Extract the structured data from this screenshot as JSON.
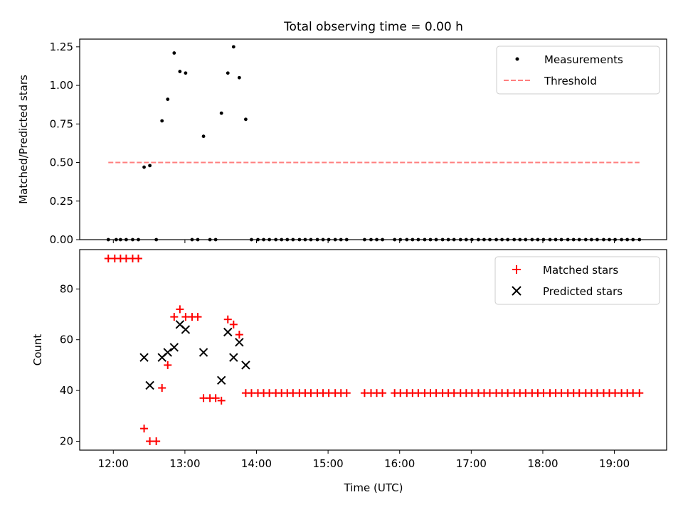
{
  "chart_data": [
    {
      "type": "scatter",
      "title": "Total observing time = 0.00 h",
      "ylabel": "Matched/Predicted stars",
      "xlim": [
        11.53,
        19.73
      ],
      "ylim": [
        0,
        1.3
      ],
      "yticks": [
        0,
        0.25,
        0.5,
        0.75,
        1.0,
        1.25
      ],
      "ytick_labels": [
        "0.00",
        "0.25",
        "0.50",
        "0.75",
        "1.00",
        "1.25"
      ],
      "legend_position": "top-right",
      "series": [
        {
          "name": "Measurements",
          "marker": "dot",
          "color": "#000000",
          "points": [
            [
              11.93,
              0
            ],
            [
              12.04,
              0
            ],
            [
              12.1,
              0
            ],
            [
              12.18,
              0
            ],
            [
              12.27,
              0
            ],
            [
              12.35,
              0
            ],
            [
              12.43,
              0.47
            ],
            [
              12.51,
              0.48
            ],
            [
              12.6,
              0
            ],
            [
              12.68,
              0.77
            ],
            [
              12.76,
              0.91
            ],
            [
              12.85,
              1.21
            ],
            [
              12.93,
              1.09
            ],
            [
              13.01,
              1.08
            ],
            [
              13.1,
              0
            ],
            [
              13.18,
              0
            ],
            [
              13.26,
              0.67
            ],
            [
              13.35,
              0
            ],
            [
              13.43,
              0
            ],
            [
              13.51,
              0.82
            ],
            [
              13.6,
              1.08
            ],
            [
              13.68,
              1.25
            ],
            [
              13.76,
              1.05
            ],
            [
              13.85,
              0.78
            ],
            [
              13.93,
              0
            ],
            [
              14.02,
              0
            ],
            [
              14.1,
              0
            ],
            [
              14.18,
              0
            ],
            [
              14.27,
              0
            ],
            [
              14.35,
              0
            ],
            [
              14.43,
              0
            ],
            [
              14.51,
              0
            ],
            [
              14.6,
              0
            ],
            [
              14.68,
              0
            ],
            [
              14.76,
              0
            ],
            [
              14.85,
              0
            ],
            [
              14.93,
              0
            ],
            [
              15.01,
              0
            ],
            [
              15.1,
              0
            ],
            [
              15.18,
              0
            ],
            [
              15.26,
              0
            ],
            [
              15.51,
              0
            ],
            [
              15.6,
              0
            ],
            [
              15.68,
              0
            ],
            [
              15.76,
              0
            ],
            [
              15.93,
              0
            ],
            [
              16.01,
              0
            ],
            [
              16.1,
              0
            ],
            [
              16.18,
              0
            ],
            [
              16.26,
              0
            ],
            [
              16.35,
              0
            ],
            [
              16.43,
              0
            ],
            [
              16.51,
              0
            ],
            [
              16.6,
              0
            ],
            [
              16.68,
              0
            ],
            [
              16.76,
              0
            ],
            [
              16.85,
              0
            ],
            [
              16.93,
              0
            ],
            [
              17.01,
              0
            ],
            [
              17.1,
              0
            ],
            [
              17.18,
              0
            ],
            [
              17.26,
              0
            ],
            [
              17.35,
              0
            ],
            [
              17.43,
              0
            ],
            [
              17.51,
              0
            ],
            [
              17.6,
              0
            ],
            [
              17.68,
              0
            ],
            [
              17.76,
              0
            ],
            [
              17.85,
              0
            ],
            [
              17.93,
              0
            ],
            [
              18.01,
              0
            ],
            [
              18.1,
              0
            ],
            [
              18.18,
              0
            ],
            [
              18.26,
              0
            ],
            [
              18.35,
              0
            ],
            [
              18.43,
              0
            ],
            [
              18.51,
              0
            ],
            [
              18.6,
              0
            ],
            [
              18.68,
              0
            ],
            [
              18.76,
              0
            ],
            [
              18.85,
              0
            ],
            [
              18.93,
              0
            ],
            [
              19.01,
              0
            ],
            [
              19.1,
              0
            ],
            [
              19.18,
              0
            ],
            [
              19.26,
              0
            ],
            [
              19.35,
              0
            ]
          ]
        },
        {
          "name": "Threshold",
          "line_style": "dashed",
          "color": "#ff7f7f",
          "x": [
            11.93,
            19.35
          ],
          "y": [
            0.5,
            0.5
          ]
        }
      ]
    },
    {
      "type": "scatter",
      "xlabel": "Time (UTC)",
      "ylabel": "Count",
      "xlim": [
        11.53,
        19.73
      ],
      "ylim": [
        16.5,
        95.5
      ],
      "xticks": [
        12,
        13,
        14,
        15,
        16,
        17,
        18,
        19
      ],
      "xtick_labels": [
        "12:00",
        "13:00",
        "14:00",
        "15:00",
        "16:00",
        "17:00",
        "18:00",
        "19:00"
      ],
      "yticks": [
        20,
        40,
        60,
        80
      ],
      "ytick_labels": [
        "20",
        "40",
        "60",
        "80"
      ],
      "legend_position": "top-right",
      "series": [
        {
          "name": "Matched stars",
          "marker": "plus",
          "color": "#ff0000",
          "points": [
            [
              11.93,
              92
            ],
            [
              12.02,
              92
            ],
            [
              12.1,
              92
            ],
            [
              12.18,
              92
            ],
            [
              12.27,
              92
            ],
            [
              12.35,
              92
            ],
            [
              12.43,
              25
            ],
            [
              12.51,
              20
            ],
            [
              12.6,
              20
            ],
            [
              12.68,
              41
            ],
            [
              12.76,
              50
            ],
            [
              12.85,
              69
            ],
            [
              12.93,
              72
            ],
            [
              13.01,
              69
            ],
            [
              13.1,
              69
            ],
            [
              13.18,
              69
            ],
            [
              13.26,
              37
            ],
            [
              13.35,
              37
            ],
            [
              13.43,
              37
            ],
            [
              13.51,
              36
            ],
            [
              13.6,
              68
            ],
            [
              13.68,
              66
            ],
            [
              13.76,
              62
            ],
            [
              13.85,
              39
            ],
            [
              13.93,
              39
            ],
            [
              14.02,
              39
            ],
            [
              14.1,
              39
            ],
            [
              14.18,
              39
            ],
            [
              14.27,
              39
            ],
            [
              14.35,
              39
            ],
            [
              14.43,
              39
            ],
            [
              14.51,
              39
            ],
            [
              14.6,
              39
            ],
            [
              14.68,
              39
            ],
            [
              14.76,
              39
            ],
            [
              14.85,
              39
            ],
            [
              14.93,
              39
            ],
            [
              15.01,
              39
            ],
            [
              15.1,
              39
            ],
            [
              15.18,
              39
            ],
            [
              15.26,
              39
            ],
            [
              15.51,
              39
            ],
            [
              15.6,
              39
            ],
            [
              15.68,
              39
            ],
            [
              15.76,
              39
            ],
            [
              15.93,
              39
            ],
            [
              16.01,
              39
            ],
            [
              16.1,
              39
            ],
            [
              16.18,
              39
            ],
            [
              16.26,
              39
            ],
            [
              16.35,
              39
            ],
            [
              16.43,
              39
            ],
            [
              16.51,
              39
            ],
            [
              16.6,
              39
            ],
            [
              16.68,
              39
            ],
            [
              16.76,
              39
            ],
            [
              16.85,
              39
            ],
            [
              16.93,
              39
            ],
            [
              17.01,
              39
            ],
            [
              17.1,
              39
            ],
            [
              17.18,
              39
            ],
            [
              17.26,
              39
            ],
            [
              17.35,
              39
            ],
            [
              17.43,
              39
            ],
            [
              17.51,
              39
            ],
            [
              17.6,
              39
            ],
            [
              17.68,
              39
            ],
            [
              17.76,
              39
            ],
            [
              17.85,
              39
            ],
            [
              17.93,
              39
            ],
            [
              18.01,
              39
            ],
            [
              18.1,
              39
            ],
            [
              18.18,
              39
            ],
            [
              18.26,
              39
            ],
            [
              18.35,
              39
            ],
            [
              18.43,
              39
            ],
            [
              18.51,
              39
            ],
            [
              18.6,
              39
            ],
            [
              18.68,
              39
            ],
            [
              18.76,
              39
            ],
            [
              18.85,
              39
            ],
            [
              18.93,
              39
            ],
            [
              19.01,
              39
            ],
            [
              19.1,
              39
            ],
            [
              19.18,
              39
            ],
            [
              19.26,
              39
            ],
            [
              19.35,
              39
            ]
          ]
        },
        {
          "name": "Predicted stars",
          "marker": "x",
          "color": "#000000",
          "points": [
            [
              12.43,
              53
            ],
            [
              12.51,
              42
            ],
            [
              12.68,
              53
            ],
            [
              12.76,
              55
            ],
            [
              12.85,
              57
            ],
            [
              12.93,
              66
            ],
            [
              13.01,
              64
            ],
            [
              13.26,
              55
            ],
            [
              13.51,
              44
            ],
            [
              13.6,
              63
            ],
            [
              13.68,
              53
            ],
            [
              13.76,
              59
            ],
            [
              13.85,
              50
            ]
          ]
        }
      ]
    }
  ]
}
